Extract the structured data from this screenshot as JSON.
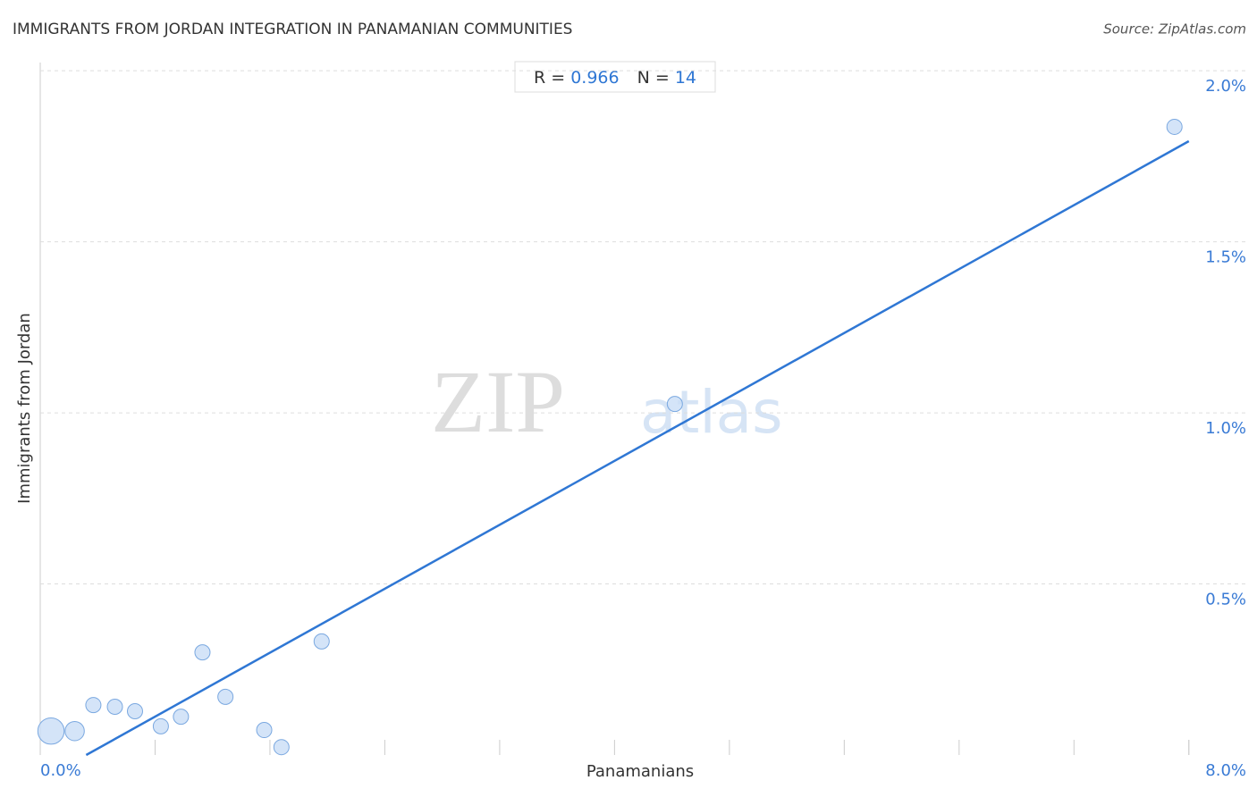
{
  "chart_data": {
    "type": "scatter",
    "title": "IMMIGRANTS FROM JORDAN INTEGRATION IN PANAMANIAN COMMUNITIES",
    "source": "Source: ZipAtlas.com",
    "x_label": "Panamanians",
    "y_label": "Immigrants from Jordan",
    "stats": {
      "r_label": "R = ",
      "r": "0.966",
      "n_label": "N = ",
      "n": "14"
    },
    "watermark": {
      "zip": "ZIP",
      "atlas": "atlas"
    },
    "x": [
      0.075,
      0.24,
      0.37,
      0.52,
      0.66,
      0.84,
      0.98,
      1.13,
      1.29,
      1.56,
      1.68,
      1.96,
      4.42,
      7.9
    ],
    "values": [
      0.07,
      0.07,
      0.146,
      0.141,
      0.128,
      0.084,
      0.112,
      0.3,
      0.17,
      0.073,
      0.023,
      0.332,
      1.026,
      1.836
    ],
    "sizes": [
      3,
      1.6,
      1,
      1,
      1,
      1,
      1,
      1,
      1,
      1,
      1,
      1,
      1,
      1
    ],
    "color": "#c9ddf6",
    "edge_color": "#7aa8e0",
    "trendline": {
      "x": [
        0.32,
        8.0
      ],
      "y": [
        0,
        1.794
      ],
      "color": "#2f77d4"
    },
    "xlim": [
      0,
      8.4
    ],
    "ylim": [
      0,
      2.05
    ],
    "xticks": [
      {
        "value": 0,
        "label": "0.0%"
      },
      {
        "value": 8,
        "label": "8.0%"
      }
    ],
    "xminor_ticks": [
      0.8,
      1.6,
      2.4,
      3.2,
      4.0,
      4.8,
      5.6,
      6.4,
      7.2,
      8.0
    ],
    "yticks": [
      {
        "value": 0.5,
        "label": "0.5%"
      },
      {
        "value": 1.0,
        "label": "1.0%"
      },
      {
        "value": 1.5,
        "label": "1.5%"
      },
      {
        "value": 2.0,
        "label": "2.0%"
      }
    ],
    "grid": true
  }
}
